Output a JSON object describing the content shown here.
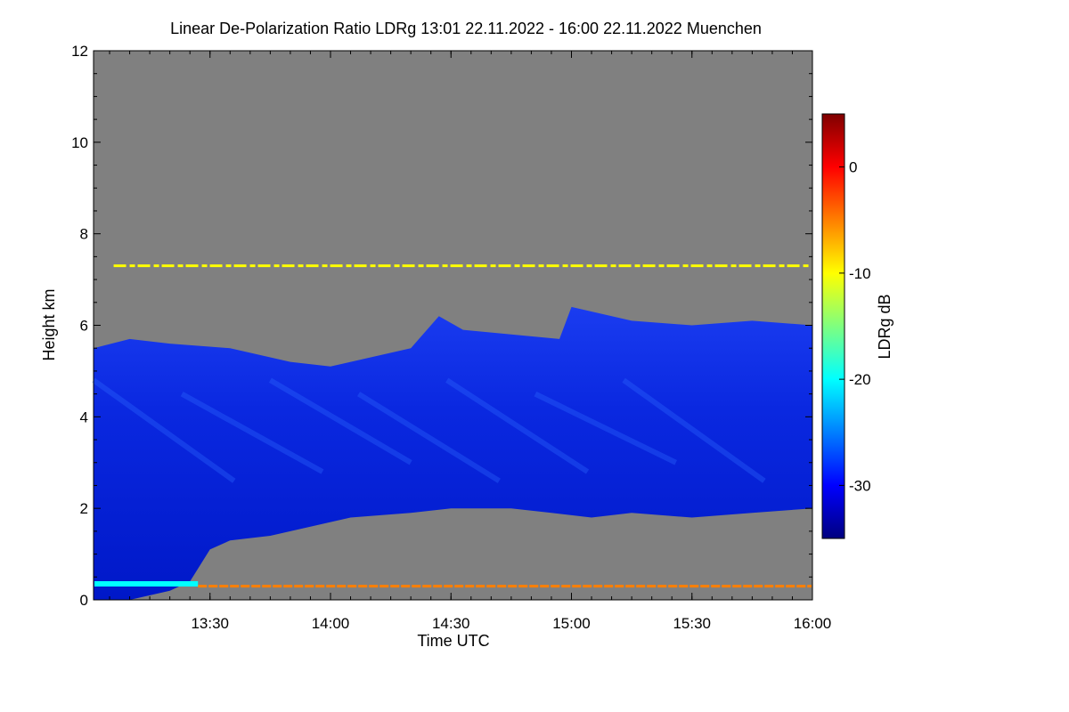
{
  "chart_data": {
    "type": "heatmap",
    "title": "Linear De-Polarization Ratio LDRg   13:01 22.11.2022 - 16:00 22.11.2022 Muenchen",
    "xlabel": "Time UTC",
    "ylabel": "Height km",
    "xlim_minutes_utc": [
      781,
      960
    ],
    "ylim": [
      0,
      12
    ],
    "x_ticks": [
      {
        "label": "13:30",
        "value": 810
      },
      {
        "label": "14:00",
        "value": 840
      },
      {
        "label": "14:30",
        "value": 870
      },
      {
        "label": "15:00",
        "value": 900
      },
      {
        "label": "15:30",
        "value": 930
      },
      {
        "label": "16:00",
        "value": 960
      }
    ],
    "y_ticks": [
      {
        "label": "0",
        "value": 0
      },
      {
        "label": "2",
        "value": 2
      },
      {
        "label": "4",
        "value": 4
      },
      {
        "label": "6",
        "value": 6
      },
      {
        "label": "8",
        "value": 8
      },
      {
        "label": "10",
        "value": 10
      },
      {
        "label": "12",
        "value": 12
      }
    ],
    "colorbar": {
      "label": "LDRg dB",
      "range": [
        -35,
        5
      ],
      "ticks": [
        {
          "label": "0",
          "value": 0
        },
        {
          "label": "-10",
          "value": -10
        },
        {
          "label": "-20",
          "value": -20
        },
        {
          "label": "-30",
          "value": -30
        }
      ],
      "stops": [
        "#00007f",
        "#0000ff",
        "#007fff",
        "#00ffff",
        "#7fff7f",
        "#ffff00",
        "#ff7f00",
        "#ff0000",
        "#7f0000"
      ]
    },
    "no_data_color": "#808080",
    "cloud_top_km": [
      {
        "t": 781,
        "h": 5.5
      },
      {
        "t": 790,
        "h": 5.7
      },
      {
        "t": 800,
        "h": 5.6
      },
      {
        "t": 815,
        "h": 5.5
      },
      {
        "t": 830,
        "h": 5.2
      },
      {
        "t": 840,
        "h": 5.1
      },
      {
        "t": 850,
        "h": 5.3
      },
      {
        "t": 860,
        "h": 5.5
      },
      {
        "t": 867,
        "h": 6.2
      },
      {
        "t": 873,
        "h": 5.9
      },
      {
        "t": 885,
        "h": 5.8
      },
      {
        "t": 897,
        "h": 5.7
      },
      {
        "t": 900,
        "h": 6.4
      },
      {
        "t": 915,
        "h": 6.1
      },
      {
        "t": 930,
        "h": 6.0
      },
      {
        "t": 945,
        "h": 6.1
      },
      {
        "t": 960,
        "h": 6.0
      }
    ],
    "cloud_base_km": [
      {
        "t": 781,
        "h": 0.0
      },
      {
        "t": 790,
        "h": 0.0
      },
      {
        "t": 800,
        "h": 0.2
      },
      {
        "t": 805,
        "h": 0.4
      },
      {
        "t": 810,
        "h": 1.1
      },
      {
        "t": 815,
        "h": 1.3
      },
      {
        "t": 825,
        "h": 1.4
      },
      {
        "t": 835,
        "h": 1.6
      },
      {
        "t": 845,
        "h": 1.8
      },
      {
        "t": 860,
        "h": 1.9
      },
      {
        "t": 870,
        "h": 2.0
      },
      {
        "t": 885,
        "h": 2.0
      },
      {
        "t": 895,
        "h": 1.9
      },
      {
        "t": 905,
        "h": 1.8
      },
      {
        "t": 915,
        "h": 1.9
      },
      {
        "t": 930,
        "h": 1.8
      },
      {
        "t": 945,
        "h": 1.9
      },
      {
        "t": 960,
        "h": 2.0
      }
    ],
    "layers": [
      {
        "name": "aerosol layer ~7.3 km",
        "height_km": 7.3,
        "ldr_db": -10
      },
      {
        "name": "surface layer ~0.3 km",
        "height_km": 0.3,
        "ldr_db": -7
      },
      {
        "name": "near-surface cyan layer",
        "height_km": 0.35,
        "ldr_db": -22
      }
    ]
  }
}
